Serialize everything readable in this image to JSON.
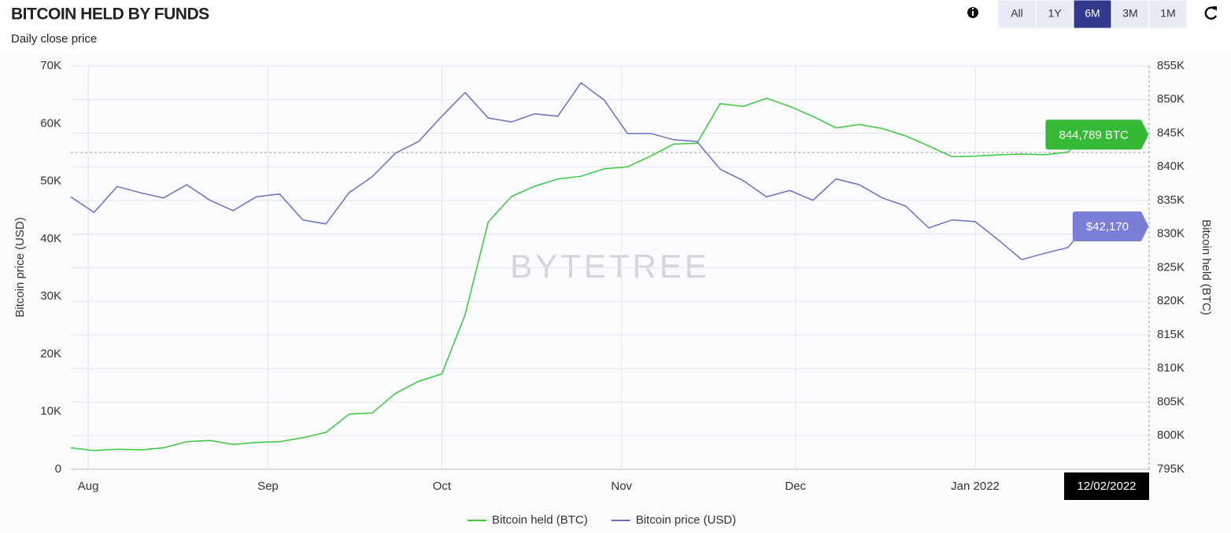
{
  "chart_data": {
    "type": "line",
    "title": "BITCOIN HELD BY FUNDS",
    "subtitle": "Daily close price",
    "y_label": "Bitcoin price (USD)",
    "y2_label": "Bitcoin held (BTC)",
    "watermark": "BYTETREE",
    "crosshair_label": "12/02/2022",
    "x": [
      "2021-07-29",
      "2021-08-02",
      "2021-08-06",
      "2021-08-10",
      "2021-08-14",
      "2021-08-18",
      "2021-08-22",
      "2021-08-26",
      "2021-08-30",
      "2021-09-03",
      "2021-09-07",
      "2021-09-11",
      "2021-09-15",
      "2021-09-19",
      "2021-09-23",
      "2021-09-27",
      "2021-10-01",
      "2021-10-05",
      "2021-10-09",
      "2021-10-13",
      "2021-10-17",
      "2021-10-21",
      "2021-10-25",
      "2021-10-29",
      "2021-11-02",
      "2021-11-06",
      "2021-11-10",
      "2021-11-14",
      "2021-11-18",
      "2021-11-22",
      "2021-11-26",
      "2021-11-30",
      "2021-12-04",
      "2021-12-08",
      "2021-12-12",
      "2021-12-16",
      "2021-12-20",
      "2021-12-24",
      "2021-12-28",
      "2022-01-01",
      "2022-01-05",
      "2022-01-09",
      "2022-01-13",
      "2022-01-17",
      "2022-01-20"
    ],
    "xlim": [
      "2021-07-29",
      "2022-01-31"
    ],
    "xticks": [
      {
        "value": "2021-08-01",
        "label": "Aug"
      },
      {
        "value": "2021-09-01",
        "label": "Sep"
      },
      {
        "value": "2021-10-01",
        "label": "Oct"
      },
      {
        "value": "2021-11-01",
        "label": "Nov"
      },
      {
        "value": "2021-12-01",
        "label": "Dec"
      },
      {
        "value": "2022-01-01",
        "label": "Jan 2022"
      }
    ],
    "ylim": [
      0,
      70000
    ],
    "yticks": [
      {
        "value": 0,
        "label": "0"
      },
      {
        "value": 10000,
        "label": "10K"
      },
      {
        "value": 20000,
        "label": "20K"
      },
      {
        "value": 30000,
        "label": "30K"
      },
      {
        "value": 40000,
        "label": "40K"
      },
      {
        "value": 50000,
        "label": "50K"
      },
      {
        "value": 60000,
        "label": "60K"
      },
      {
        "value": 70000,
        "label": "70K"
      }
    ],
    "y2lim": [
      795000,
      855000
    ],
    "y2ticks": [
      {
        "value": 795000,
        "label": "795K"
      },
      {
        "value": 800000,
        "label": "800K"
      },
      {
        "value": 805000,
        "label": "805K"
      },
      {
        "value": 810000,
        "label": "810K"
      },
      {
        "value": 815000,
        "label": "815K"
      },
      {
        "value": 820000,
        "label": "820K"
      },
      {
        "value": 825000,
        "label": "825K"
      },
      {
        "value": 830000,
        "label": "830K"
      },
      {
        "value": 835000,
        "label": "835K"
      },
      {
        "value": 840000,
        "label": "840K"
      },
      {
        "value": 845000,
        "label": "845K"
      },
      {
        "value": 850000,
        "label": "850K"
      },
      {
        "value": 855000,
        "label": "855K"
      }
    ],
    "grid": true,
    "legend": "bottom",
    "series": [
      {
        "name": "Bitcoin held (BTC)",
        "color": "#3cc83c",
        "label_color": "#36b936",
        "axis": "y2",
        "values": [
          798200,
          797800,
          798000,
          797900,
          798200,
          799100,
          799300,
          798700,
          799000,
          799100,
          799700,
          800500,
          803200,
          803400,
          806300,
          808100,
          809200,
          818000,
          831800,
          835600,
          837100,
          838200,
          838600,
          839700,
          840000,
          841600,
          843400,
          843500,
          849400,
          849000,
          850200,
          849000,
          847500,
          845800,
          846300,
          845700,
          844600,
          843100,
          841500,
          841600,
          841800,
          841900,
          841800,
          842200,
          844789
        ],
        "value_labels": [
          null,
          null,
          null,
          null,
          null,
          null,
          null,
          null,
          null,
          null,
          null,
          null,
          null,
          null,
          null,
          null,
          null,
          null,
          null,
          null,
          null,
          null,
          null,
          null,
          null,
          null,
          null,
          null,
          null,
          null,
          null,
          null,
          null,
          null,
          null,
          null,
          null,
          null,
          null,
          null,
          null,
          null,
          null,
          null,
          "844,789 BTC"
        ]
      },
      {
        "name": "Bitcoin price (USD)",
        "color": "#6b6fc2",
        "label_color": "#7a7ed6",
        "axis": "y",
        "values": [
          47300,
          44600,
          49100,
          48000,
          47100,
          49400,
          46700,
          44900,
          47300,
          47800,
          43300,
          42600,
          48000,
          50800,
          54900,
          56900,
          61300,
          65400,
          61000,
          60300,
          61700,
          61300,
          67100,
          64100,
          58300,
          58300,
          57200,
          56900,
          52100,
          50100,
          47300,
          48400,
          46700,
          50400,
          49400,
          47100,
          45700,
          41900,
          43300,
          43000,
          39800,
          36400,
          37500,
          38500,
          42170
        ],
        "value_labels": [
          null,
          null,
          null,
          null,
          null,
          null,
          null,
          null,
          null,
          null,
          null,
          null,
          null,
          null,
          null,
          null,
          null,
          null,
          null,
          null,
          null,
          null,
          null,
          null,
          null,
          null,
          null,
          null,
          null,
          null,
          null,
          null,
          null,
          null,
          null,
          null,
          null,
          null,
          null,
          null,
          null,
          null,
          null,
          null,
          "$42,170"
        ]
      }
    ]
  },
  "controls": {
    "range_buttons": [
      "All",
      "1Y",
      "6M",
      "3M",
      "1M"
    ],
    "selected_range": "6M"
  }
}
